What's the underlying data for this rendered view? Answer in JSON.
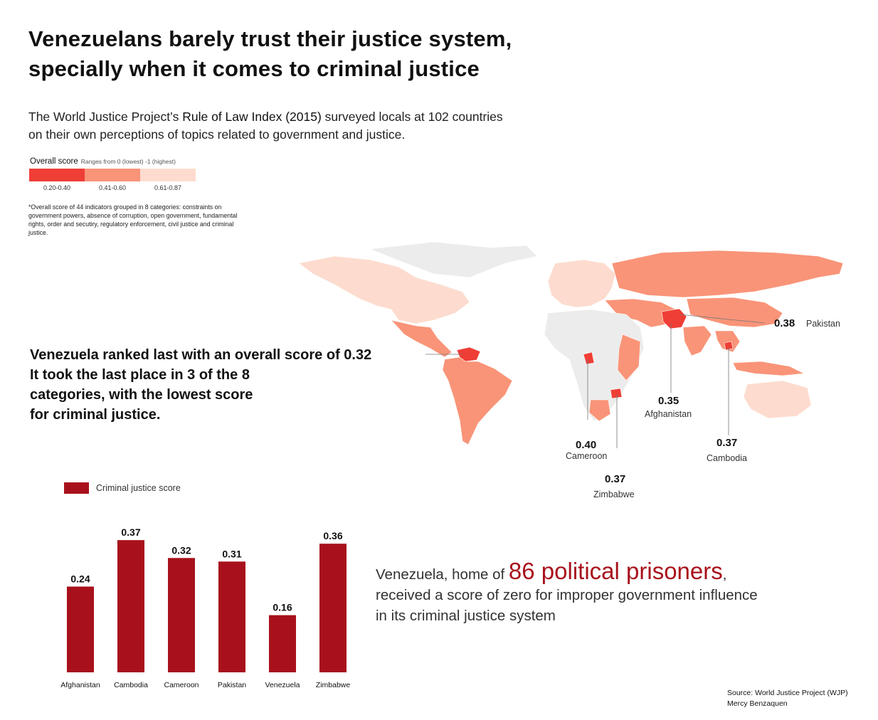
{
  "title_line1": "Venezuelans barely trust their justice system,",
  "title_line2": "specially when it comes to criminal justice",
  "intro": {
    "pre": "The World Justice Project’s ",
    "index_name": "Rule of Law Index (2015)",
    "post": " surveyed locals at 102 countries",
    "line2": "on their own perceptions of topics related to government and justice."
  },
  "legend": {
    "label": "Overall score",
    "range_note": "Ranges from 0 (lowest) -1 (highest)",
    "bins": [
      {
        "label": "0.20-0.40",
        "color": "#ef3e36"
      },
      {
        "label": "0.41-0.60",
        "color": "#f99478"
      },
      {
        "label": "0.61-0.87",
        "color": "#fddccf"
      }
    ]
  },
  "footnote": "*Overall score of 44 indicators grouped in 8 categories: constraints on government powers, absence of corruption, open government,  fundamental rights, order and secutiry, regulatory enforcement, civil justice and criminal justice.",
  "venezuela_callout": {
    "line1": "Venezuela ranked last with an overall score of 0.32",
    "line2": "It took the last place in 3 of the 8",
    "line3": "categories, with the lowest score",
    "line4": "for criminal justice."
  },
  "map_labels": [
    {
      "country": "Pakistan",
      "score": "0.38"
    },
    {
      "country": "Afghanistan",
      "score": "0.35"
    },
    {
      "country": "Cambodia",
      "score": "0.37"
    },
    {
      "country": "Cameroon",
      "score": "0.40"
    },
    {
      "country": "Zimbabwe",
      "score": "0.37"
    }
  ],
  "map_colors": {
    "low": "#ef3e36",
    "mid": "#f99478",
    "high": "#fddccf",
    "nodata": "#ececec"
  },
  "chart_data": {
    "type": "bar",
    "categories": [
      "Afghanistan",
      "Cambodia",
      "Cameroon",
      "Pakistan",
      "Venezuela",
      "Zimbabwe"
    ],
    "series": [
      {
        "name": "Criminal justice score",
        "values": [
          0.24,
          0.37,
          0.32,
          0.31,
          0.16,
          0.36
        ]
      }
    ],
    "value_labels": [
      "0.24",
      "0.37",
      "0.32",
      "0.31",
      "0.16",
      "0.36"
    ],
    "ylim": [
      0,
      0.4
    ],
    "color": "#a8111b",
    "grid": false
  },
  "prisoners": {
    "pre": "Venezuela, home of ",
    "highlight": "86 political prisoners",
    "post": ",",
    "line2": "received a score of zero for improper government influence",
    "line3": "in its criminal justice system"
  },
  "source": {
    "line1": "Source: World Justice Project (WJP)",
    "line2": "Mercy Benzaquen"
  }
}
